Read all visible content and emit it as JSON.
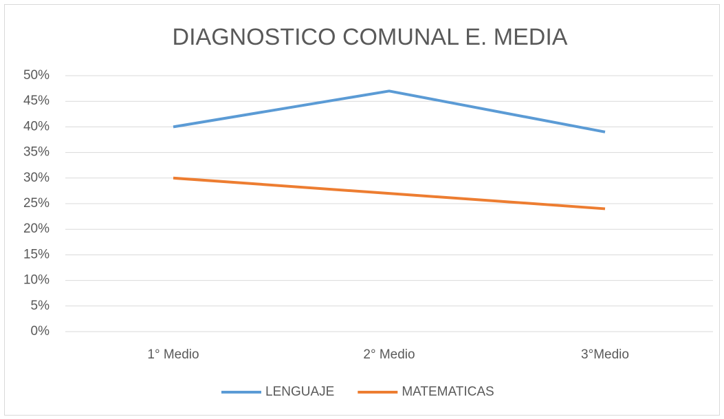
{
  "chart_data": {
    "type": "line",
    "title": "DIAGNOSTICO COMUNAL E. MEDIA",
    "categories": [
      "1° Medio",
      "2° Medio",
      "3°Medio"
    ],
    "series": [
      {
        "name": "LENGUAJE",
        "color": "#5b9bd5",
        "values": [
          40,
          47,
          39
        ]
      },
      {
        "name": "MATEMATICAS",
        "color": "#ed7d31",
        "values": [
          30,
          27,
          24
        ]
      }
    ],
    "ylim": [
      0,
      50
    ],
    "yticks": [
      {
        "value": 0,
        "label": "0%"
      },
      {
        "value": 5,
        "label": "5%"
      },
      {
        "value": 10,
        "label": "10%"
      },
      {
        "value": 15,
        "label": "15%"
      },
      {
        "value": 20,
        "label": "20%"
      },
      {
        "value": 25,
        "label": "25%"
      },
      {
        "value": 30,
        "label": "30%"
      },
      {
        "value": 35,
        "label": "35%"
      },
      {
        "value": 40,
        "label": "40%"
      },
      {
        "value": 45,
        "label": "45%"
      },
      {
        "value": 50,
        "label": "50%"
      }
    ],
    "grid": true,
    "legend": "bottom"
  }
}
